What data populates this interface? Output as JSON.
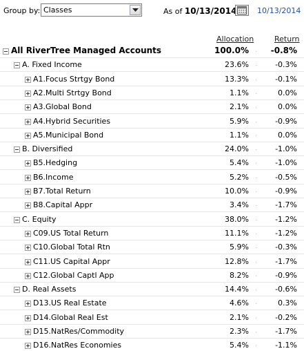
{
  "toolbar": {
    "group_by_label": "Group by:",
    "group_by_value": "Classes",
    "as_of_label": "As of",
    "as_of_date": "10/13/2014",
    "date_link": "10/13/2014"
  },
  "columns": {
    "allocation": "Allocation",
    "return": "Return"
  },
  "rows": [
    {
      "label": "All RiverTree Managed Accounts",
      "allocation": "100.0%",
      "return": "-0.8%",
      "level": 0,
      "expander": "minus",
      "total": true
    },
    {
      "label": "A. Fixed Income",
      "allocation": "23.6%",
      "return": "-0.3%",
      "level": 1,
      "expander": "minus"
    },
    {
      "label": "A1.Focus Strtgy Bond",
      "allocation": "13.3%",
      "return": "-0.1%",
      "level": 2,
      "expander": "plus"
    },
    {
      "label": "A2.Multi Strtgy Bond",
      "allocation": "1.1%",
      "return": "0.0%",
      "level": 2,
      "expander": "plus"
    },
    {
      "label": "A3.Global Bond",
      "allocation": "2.1%",
      "return": "0.0%",
      "level": 2,
      "expander": "plus"
    },
    {
      "label": "A4.Hybrid Securities",
      "allocation": "5.9%",
      "return": "-0.9%",
      "level": 2,
      "expander": "plus"
    },
    {
      "label": "A5.Municipal Bond",
      "allocation": "1.1%",
      "return": "0.0%",
      "level": 2,
      "expander": "plus"
    },
    {
      "label": "B. Diversified",
      "allocation": "24.0%",
      "return": "-1.0%",
      "level": 1,
      "expander": "minus"
    },
    {
      "label": "B5.Hedging",
      "allocation": "5.4%",
      "return": "-1.0%",
      "level": 2,
      "expander": "plus"
    },
    {
      "label": "B6.Income",
      "allocation": "5.2%",
      "return": "-0.5%",
      "level": 2,
      "expander": "plus"
    },
    {
      "label": "B7.Total Return",
      "allocation": "10.0%",
      "return": "-0.9%",
      "level": 2,
      "expander": "plus"
    },
    {
      "label": "B8.Capital Appr",
      "allocation": "3.4%",
      "return": "-1.7%",
      "level": 2,
      "expander": "plus"
    },
    {
      "label": "C. Equity",
      "allocation": "38.0%",
      "return": "-1.2%",
      "level": 1,
      "expander": "minus"
    },
    {
      "label": "C09.US Total Return",
      "allocation": "11.1%",
      "return": "-1.2%",
      "level": 2,
      "expander": "plus"
    },
    {
      "label": "C10.Global Total Rtn",
      "allocation": "5.9%",
      "return": "-0.3%",
      "level": 2,
      "expander": "plus"
    },
    {
      "label": "C11.US Capital Appr",
      "allocation": "12.8%",
      "return": "-1.7%",
      "level": 2,
      "expander": "plus"
    },
    {
      "label": "C12.Global Captl App",
      "allocation": "8.2%",
      "return": "-0.9%",
      "level": 2,
      "expander": "plus"
    },
    {
      "label": "D. Real Assets",
      "allocation": "14.4%",
      "return": "-0.6%",
      "level": 1,
      "expander": "minus"
    },
    {
      "label": "D13.US Real Estate",
      "allocation": "4.6%",
      "return": "0.3%",
      "level": 2,
      "expander": "plus"
    },
    {
      "label": "D14.Global Real Est",
      "allocation": "2.1%",
      "return": "-0.2%",
      "level": 2,
      "expander": "plus"
    },
    {
      "label": "D15.NatRes/Commodity",
      "allocation": "2.3%",
      "return": "-1.7%",
      "level": 2,
      "expander": "plus"
    },
    {
      "label": "D16.NatRes Economies",
      "allocation": "5.4%",
      "return": "-1.1%",
      "level": 2,
      "expander": "plus"
    }
  ]
}
